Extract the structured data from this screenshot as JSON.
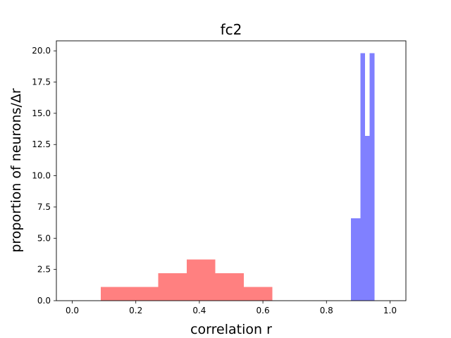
{
  "chart_data": {
    "type": "bar",
    "title": "fc2",
    "xlabel": "correlation r",
    "ylabel": "proportion of neurons/Δr",
    "xlim": [
      -0.05,
      1.05
    ],
    "ylim": [
      0,
      20.8
    ],
    "xticks": [
      "0.0",
      "0.2",
      "0.4",
      "0.6",
      "0.8",
      "1.0"
    ],
    "xtick_values": [
      0.0,
      0.2,
      0.4,
      0.6,
      0.8,
      1.0
    ],
    "yticks": [
      "0.0",
      "2.5",
      "5.0",
      "7.5",
      "10.0",
      "12.5",
      "15.0",
      "17.5",
      "20.0"
    ],
    "ytick_values": [
      0.0,
      2.5,
      5.0,
      7.5,
      10.0,
      12.5,
      15.0,
      17.5,
      20.0
    ],
    "grid": false,
    "legend": "none",
    "series": [
      {
        "color": "#ff8080",
        "bins": [
          {
            "x0": 0.09,
            "x1": 0.18,
            "y": 1.1
          },
          {
            "x0": 0.18,
            "x1": 0.27,
            "y": 1.1
          },
          {
            "x0": 0.27,
            "x1": 0.36,
            "y": 2.2
          },
          {
            "x0": 0.36,
            "x1": 0.45,
            "y": 3.3
          },
          {
            "x0": 0.45,
            "x1": 0.54,
            "y": 2.2
          },
          {
            "x0": 0.54,
            "x1": 0.63,
            "y": 1.1
          }
        ]
      },
      {
        "color": "#8080ff",
        "bins": [
          {
            "x0": 0.877,
            "x1": 0.9067,
            "y": 6.6
          },
          {
            "x0": 0.9067,
            "x1": 0.9213,
            "y": 19.8
          },
          {
            "x0": 0.9213,
            "x1": 0.9361,
            "y": 13.2
          },
          {
            "x0": 0.9361,
            "x1": 0.9509,
            "y": 19.8
          }
        ]
      }
    ]
  }
}
